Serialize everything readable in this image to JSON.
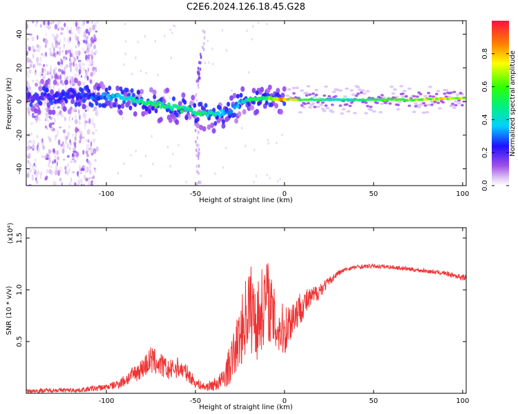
{
  "figure_title": "C2E6.2024.126.18.45.G28",
  "chart_data": [
    {
      "type": "heatmap",
      "title": "C2E6.2024.126.18.45.G28",
      "xlabel": "Height of straight line (km)",
      "ylabel": "Frequency (Hz)",
      "xlim": [
        -145,
        102
      ],
      "ylim": [
        -50,
        48
      ],
      "x_ticks": [
        -100,
        -50,
        0,
        50,
        100
      ],
      "x_tick_labels": [
        "-100",
        "-50",
        "0",
        "50",
        "100"
      ],
      "y_ticks": [
        -40,
        -20,
        0,
        20,
        40
      ],
      "y_tick_labels": [
        "-40",
        "-20",
        "0",
        "20",
        "40"
      ],
      "colorbar": {
        "label": "Normalized spectral amplitude",
        "range": [
          0,
          1
        ],
        "ticks": [
          0.0,
          0.2,
          0.4,
          0.6,
          0.8
        ],
        "tick_labels": [
          "0.0",
          "0.2",
          "0.4",
          "0.6",
          "0.8"
        ]
      },
      "ridge": {
        "x": [
          -145,
          -120,
          -105,
          -90,
          -80,
          -70,
          -60,
          -50,
          -40,
          -35,
          -30,
          -25,
          -20,
          -10,
          0,
          10,
          25,
          50,
          75,
          100
        ],
        "frequency": [
          3,
          3,
          3,
          2,
          0,
          -2,
          -4,
          -6,
          -8,
          -7,
          -5,
          -1,
          1,
          2,
          1,
          1,
          1,
          1,
          1,
          2
        ],
        "amplitude": [
          0.2,
          0.25,
          0.3,
          0.45,
          0.5,
          0.55,
          0.5,
          0.5,
          0.45,
          0.4,
          0.3,
          0.35,
          0.5,
          0.6,
          0.85,
          0.6,
          0.45,
          0.55,
          0.7,
          0.8
        ]
      },
      "noise_region_x": [
        -145,
        -105
      ],
      "vertical_streak_x": -50,
      "grid": false
    },
    {
      "type": "line",
      "xlabel": "Height of straight line (km)",
      "ylabel": "SNR (10 * v/v)",
      "y_multiplier": "(x10⁴)",
      "xlim": [
        -145,
        102
      ],
      "ylim": [
        0,
        1.6
      ],
      "x_ticks": [
        -100,
        -50,
        0,
        50,
        100
      ],
      "x_tick_labels": [
        "-100",
        "-50",
        "0",
        "50",
        "100"
      ],
      "y_ticks": [
        0.5,
        1.0,
        1.5
      ],
      "y_tick_labels": [
        "0.5",
        "1.0",
        "1.5"
      ],
      "color": "#ee3333",
      "grid": false,
      "series": [
        {
          "x": [
            -145,
            -130,
            -115,
            -105,
            -100,
            -95,
            -90,
            -85,
            -80,
            -75,
            -70,
            -65,
            -60,
            -55,
            -50,
            -45,
            -40,
            -35,
            -30,
            -25,
            -20,
            -15,
            -10,
            -5,
            0,
            5,
            10,
            15,
            20,
            25,
            30,
            35,
            40,
            50,
            60,
            70,
            80,
            90,
            100
          ],
          "y": [
            0.02,
            0.03,
            0.03,
            0.05,
            0.06,
            0.08,
            0.12,
            0.18,
            0.24,
            0.32,
            0.28,
            0.22,
            0.25,
            0.2,
            0.1,
            0.06,
            0.08,
            0.12,
            0.3,
            0.55,
            0.85,
            0.7,
            0.95,
            0.65,
            0.6,
            0.75,
            0.85,
            0.92,
            1.0,
            1.08,
            1.16,
            1.2,
            1.22,
            1.23,
            1.22,
            1.2,
            1.18,
            1.16,
            1.12
          ],
          "noise_amplitude": [
            0.02,
            0.02,
            0.02,
            0.03,
            0.03,
            0.04,
            0.06,
            0.08,
            0.1,
            0.14,
            0.12,
            0.1,
            0.1,
            0.08,
            0.05,
            0.04,
            0.06,
            0.1,
            0.2,
            0.3,
            0.45,
            0.4,
            0.4,
            0.3,
            0.25,
            0.2,
            0.15,
            0.1,
            0.08,
            0.04,
            0.03,
            0.02,
            0.02,
            0.02,
            0.02,
            0.02,
            0.02,
            0.02,
            0.03
          ]
        }
      ]
    }
  ]
}
